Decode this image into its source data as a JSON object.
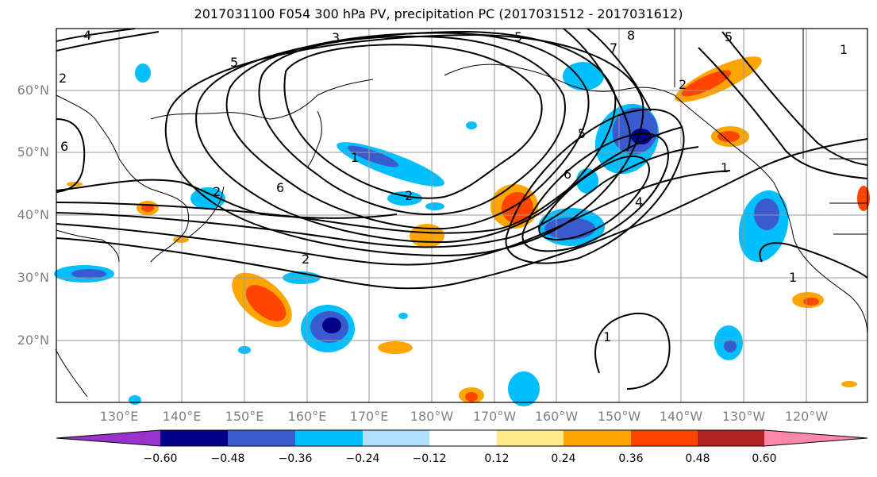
{
  "title": "2017031100 F054 300 hPa PV, precipitation PC (2017031512 - 2017031612)",
  "lat_labels": [
    "60°N",
    "50°N",
    "40°N",
    "30°N",
    "20°N"
  ],
  "lon_labels": [
    "130°E",
    "140°E",
    "150°E",
    "160°E",
    "170°E",
    "180°W",
    "170°W",
    "160°W",
    "150°W",
    "140°W",
    "130°W",
    "120°W"
  ],
  "colorbar": {
    "colors": [
      "#9932CC",
      "#00008B",
      "#3A5BCD",
      "#00BFFF",
      "#B0E0FF",
      "#FFFFFF",
      "#FFEB8A",
      "#FFA500",
      "#FF4500",
      "#B22222",
      "#FF88AA"
    ],
    "tick_labels": [
      "−0.60",
      "−0.48",
      "−0.36",
      "−0.24",
      "−0.12",
      "0.12",
      "0.24",
      "0.36",
      "0.48",
      "0.60"
    ]
  },
  "contour_labels": [
    "4",
    "3",
    "5",
    "8",
    "5",
    "7",
    "5",
    "2",
    "2",
    "1",
    "2",
    "5",
    "1",
    "6",
    "4",
    "6",
    "6",
    "2",
    "2",
    "1",
    "1",
    "1"
  ]
}
